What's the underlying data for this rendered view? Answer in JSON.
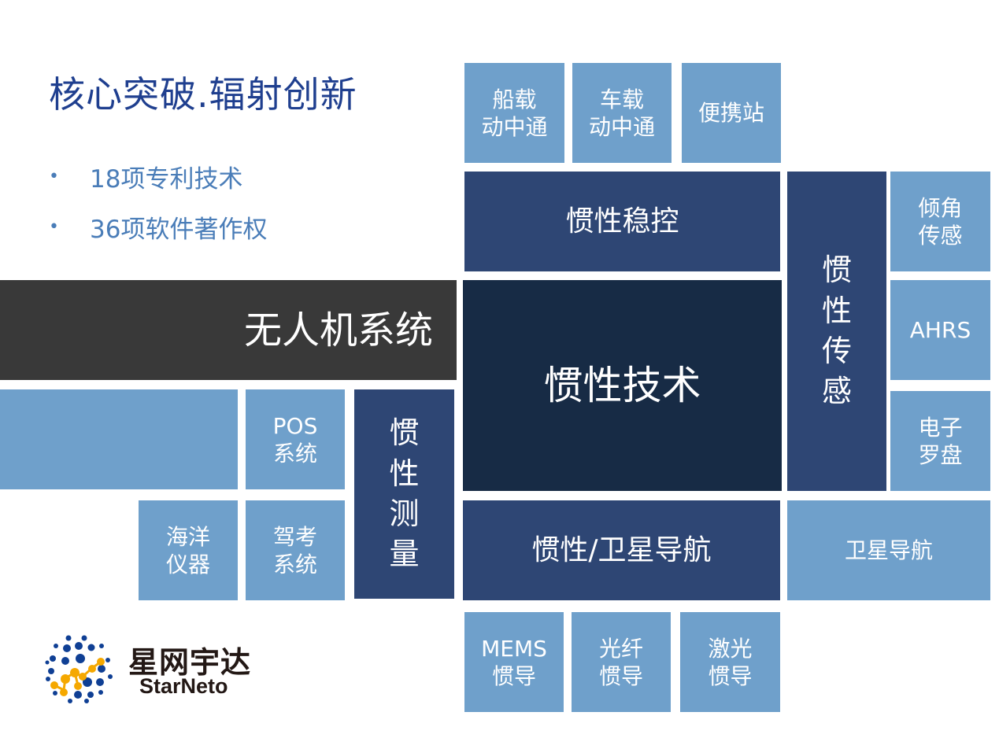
{
  "title": "核心突破.辐射创新",
  "bullets": [
    "18项专利技术",
    "36项软件著作权"
  ],
  "tiles": {
    "ship": "船载\n动中通",
    "vehicle": "车载\n动中通",
    "portable": "便携站",
    "stab": "惯性稳控",
    "sensing": "惯\n性\n传\n感",
    "tilt": "倾角\n传感",
    "ahrs": "AHRS",
    "compass": "电子\n罗盘",
    "uav": "无人机系统",
    "core": "惯性技术",
    "blank": "",
    "pos": "POS\n系统",
    "measure": "惯\n性\n测\n量",
    "ocean": "海洋\n仪器",
    "driving": "驾考\n系统",
    "insgnss": "惯性/卫星导航",
    "gnss": "卫星导航",
    "mems": "MEMS\n惯导",
    "fiber": "光纤\n惯导",
    "laser": "激光\n惯导"
  },
  "logo": {
    "cn": "星网宇达",
    "en": "StarNeto"
  },
  "colors": {
    "light": "#6fa0cb",
    "navy": "#2e4674",
    "dark": "#172b45",
    "gray": "#393939",
    "title": "#1f3f8f"
  }
}
